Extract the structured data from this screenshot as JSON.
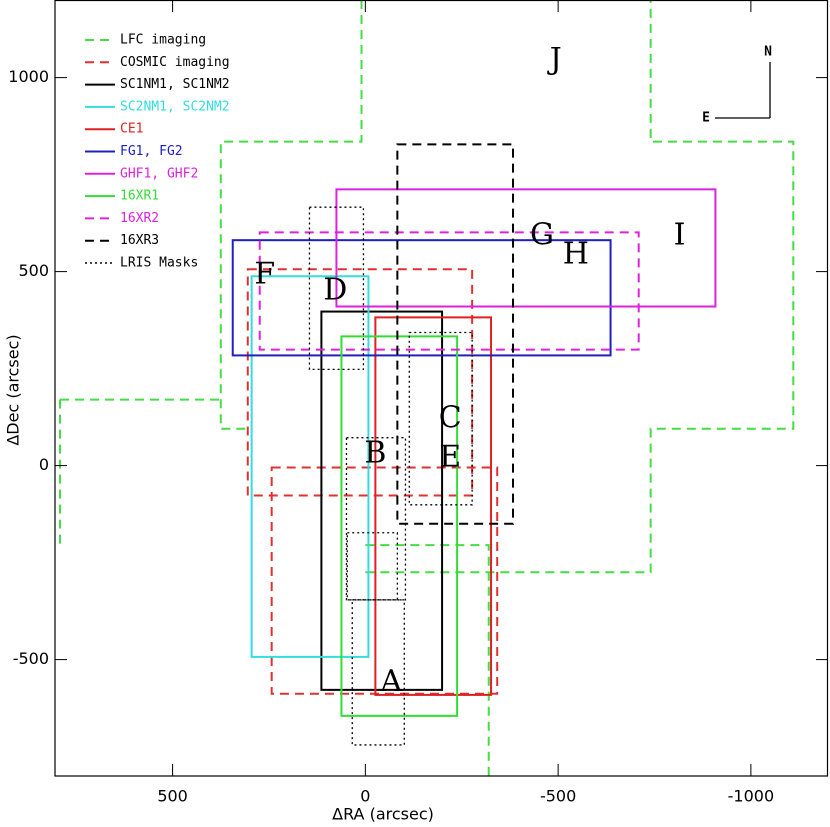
{
  "chart_data": {
    "type": "footprint",
    "x_label": "ΔRA (arcsec)",
    "y_label": "ΔDec (arcsec)",
    "xlim": [
      805,
      -1200
    ],
    "ylim": [
      -800,
      1200
    ],
    "xticks": [
      500,
      0,
      -500,
      -1000
    ],
    "yticks": [
      1000,
      500,
      0,
      -500
    ],
    "series": [
      {
        "name": "LFC imaging",
        "color": "#44dd44",
        "text_color": "#000000",
        "dash": "dashed",
        "paths": [
          [
            [
              10,
              1200
            ],
            [
              10,
              835
            ],
            [
              375,
              835
            ],
            [
              375,
              95
            ],
            [
              300,
              95
            ]
          ],
          [
            [
              792,
              170
            ],
            [
              375,
              170
            ]
          ],
          [
            [
              792,
              170
            ],
            [
              792,
              -205
            ]
          ],
          [
            [
              0,
              -205
            ],
            [
              -320,
              -205
            ],
            [
              -320,
              -800
            ]
          ],
          [
            [
              0,
              -275
            ],
            [
              -740,
              -275
            ],
            [
              -740,
              95
            ],
            [
              -1110,
              95
            ],
            [
              -1110,
              835
            ],
            [
              -740,
              835
            ],
            [
              -740,
              1200
            ]
          ]
        ]
      },
      {
        "name": "COSMIC imaging",
        "color": "#e03030",
        "text_color": "#000000",
        "dash": "dashed",
        "rects": [
          [
            305,
            -277,
            506,
            -77
          ],
          [
            243,
            -342,
            -5,
            -588
          ]
        ]
      },
      {
        "name": "SC1NM1, SC1NM2",
        "color": "#000000",
        "text_color": "#000000",
        "dash": "solid",
        "rects": [
          [
            114,
            -199,
            397,
            -578
          ]
        ]
      },
      {
        "name": "SC2NM1, SC2NM2",
        "color": "#33dddd",
        "text_color": "#33dddd",
        "dash": "solid",
        "rects": [
          [
            295,
            -8,
            488,
            -493
          ]
        ]
      },
      {
        "name": "CE1",
        "color": "#e02020",
        "text_color": "#e02020",
        "dash": "solid",
        "rects": [
          [
            -26,
            -326,
            382,
            -591
          ]
        ]
      },
      {
        "name": "FG1, FG2",
        "color": "#2020c0",
        "text_color": "#2020c0",
        "dash": "solid",
        "rects": [
          [
            344,
            -636,
            581,
            284
          ]
        ]
      },
      {
        "name": "GHF1, GHF2",
        "color": "#dd22dd",
        "text_color": "#dd22dd",
        "dash": "solid",
        "rects": [
          [
            75,
            -908,
            712,
            410
          ]
        ]
      },
      {
        "name": "16XR1",
        "color": "#33dd33",
        "text_color": "#33dd33",
        "dash": "solid",
        "rects": [
          [
            62,
            -238,
            333,
            -645
          ]
        ]
      },
      {
        "name": "16XR2",
        "color": "#dd22dd",
        "text_color": "#dd22dd",
        "dash": "dashed",
        "rects": [
          [
            274,
            -709,
            601,
            299
          ]
        ]
      },
      {
        "name": "16XR3",
        "color": "#000000",
        "text_color": "#000000",
        "dash": "dashed",
        "rects": [
          [
            -83,
            -383,
            828,
            -150
          ]
        ]
      },
      {
        "name": "LRIS Masks",
        "color": "#000000",
        "text_color": "#000000",
        "dash": "dotted",
        "rects": [
          [
            145,
            5,
            666,
            248
          ],
          [
            -114,
            -277,
            343,
            -101
          ],
          [
            49,
            -104,
            72,
            -346
          ],
          [
            47,
            -83,
            -173,
            -346
          ],
          [
            34,
            -101,
            -346,
            -720
          ]
        ]
      }
    ],
    "annotations": [
      {
        "text": "J",
        "x": -494,
        "y": 1043
      },
      {
        "text": "G",
        "x": -458,
        "y": 591
      },
      {
        "text": "H",
        "x": -546,
        "y": 542
      },
      {
        "text": "I",
        "x": -815,
        "y": 591
      },
      {
        "text": "F",
        "x": 261,
        "y": 490
      },
      {
        "text": "D",
        "x": 78,
        "y": 449
      },
      {
        "text": "C",
        "x": -220,
        "y": 119
      },
      {
        "text": "B",
        "x": -26,
        "y": 28
      },
      {
        "text": "E",
        "x": -220,
        "y": 18
      },
      {
        "text": "A",
        "x": -67,
        "y": -560
      }
    ],
    "compass": {
      "north": "N",
      "east": "E"
    }
  }
}
